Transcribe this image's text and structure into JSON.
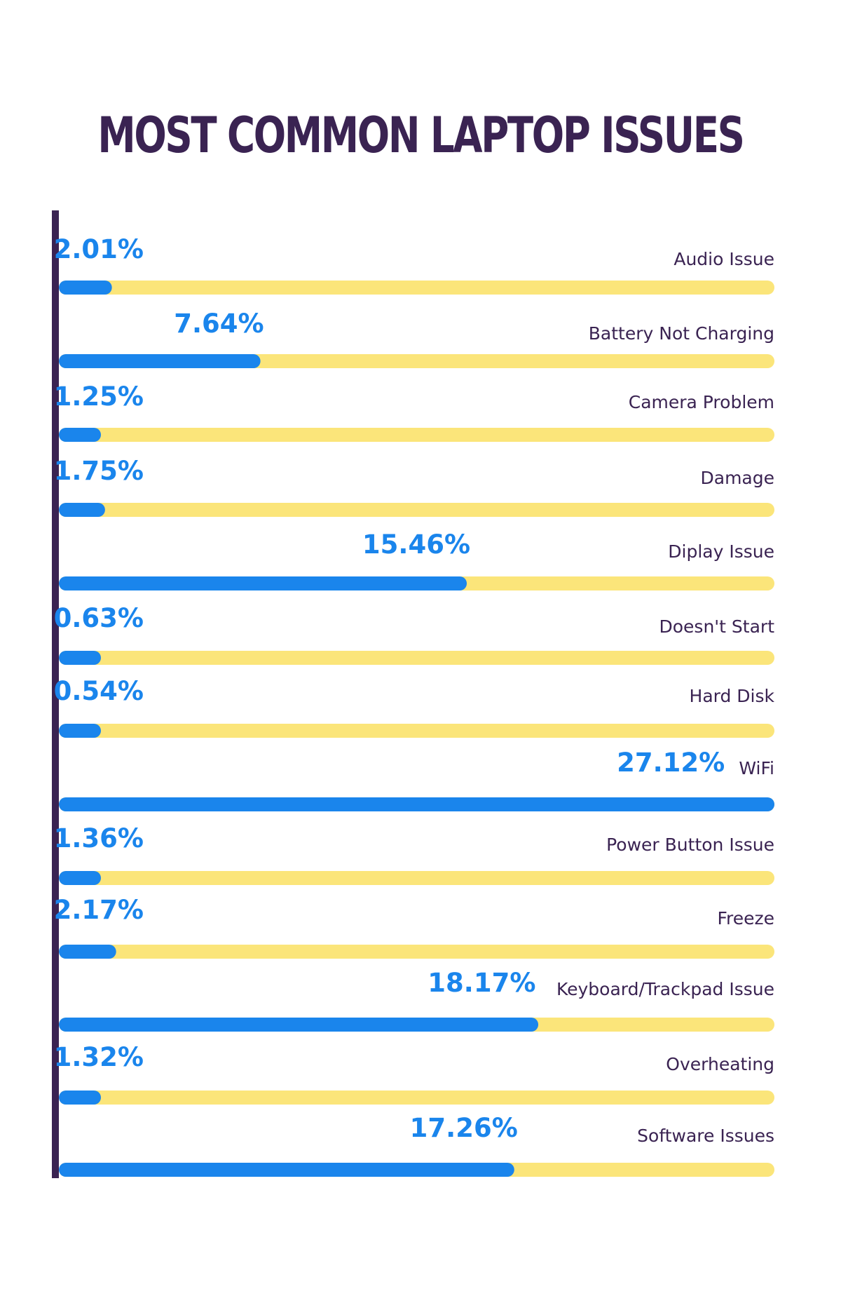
{
  "chart_data": {
    "type": "bar",
    "orientation": "horizontal",
    "title": "MOST COMMON LAPTOP ISSUES",
    "categories": [
      "Audio Issue",
      "Battery Not Charging",
      "Camera Problem",
      "Damage",
      "Diplay Issue",
      "Doesn't Start",
      "Hard Disk",
      "WiFi",
      "Power Button Issue",
      "Freeze",
      "Keyboard/Trackpad Issue",
      "Overheating",
      "Software Issues"
    ],
    "values": [
      2.01,
      7.64,
      1.25,
      1.75,
      15.46,
      0.63,
      0.54,
      27.12,
      1.36,
      2.17,
      18.17,
      1.32,
      17.26
    ],
    "value_labels": [
      "2.01%",
      "7.64%",
      "1.25%",
      "1.75%",
      "15.46%",
      "0.63%",
      "0.54%",
      "27.12%",
      "1.36%",
      "2.17%",
      "18.17%",
      "1.32%",
      "17.26%"
    ],
    "xlim": [
      0,
      27.12
    ],
    "legend": "none",
    "grid": false,
    "colors": {
      "bar": "#1a85ec",
      "track": "#fbe57a",
      "axis": "#3a2352",
      "title": "#3a2352",
      "category_text": "#3a2352",
      "value_text": "#1a85ec"
    }
  }
}
